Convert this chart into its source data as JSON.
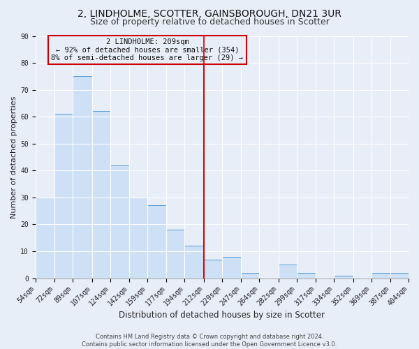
{
  "title": "2, LINDHOLME, SCOTTER, GAINSBOROUGH, DN21 3UR",
  "subtitle": "Size of property relative to detached houses in Scotter",
  "xlabel": "Distribution of detached houses by size in Scotter",
  "ylabel": "Number of detached properties",
  "bar_values": [
    30,
    61,
    75,
    62,
    42,
    30,
    27,
    18,
    12,
    7,
    8,
    2,
    0,
    5,
    2,
    0,
    1,
    0,
    2,
    2
  ],
  "bin_edges": [
    54,
    72,
    89,
    107,
    124,
    142,
    159,
    177,
    194,
    212,
    229,
    247,
    264,
    282,
    299,
    317,
    334,
    352,
    369,
    387,
    404
  ],
  "bar_color": "#cde0f5",
  "bar_edge_color": "#5b9bd5",
  "vline_x": 212,
  "vline_color": "#cc0000",
  "ylim": [
    0,
    90
  ],
  "yticks": [
    0,
    10,
    20,
    30,
    40,
    50,
    60,
    70,
    80,
    90
  ],
  "annotation_title": "2 LINDHOLME: 209sqm",
  "annotation_line1": "← 92% of detached houses are smaller (354)",
  "annotation_line2": "8% of semi-detached houses are larger (29) →",
  "annotation_box_color": "#cc0000",
  "footer_line1": "Contains HM Land Registry data © Crown copyright and database right 2024.",
  "footer_line2": "Contains public sector information licensed under the Open Government Licence v3.0.",
  "background_color": "#e8eef8",
  "plot_bg_color": "#e8eef8",
  "grid_color": "#ffffff",
  "title_fontsize": 10,
  "subtitle_fontsize": 9,
  "xlabel_fontsize": 8.5,
  "ylabel_fontsize": 8,
  "tick_fontsize": 7,
  "annotation_fontsize": 7.5,
  "footer_fontsize": 6
}
